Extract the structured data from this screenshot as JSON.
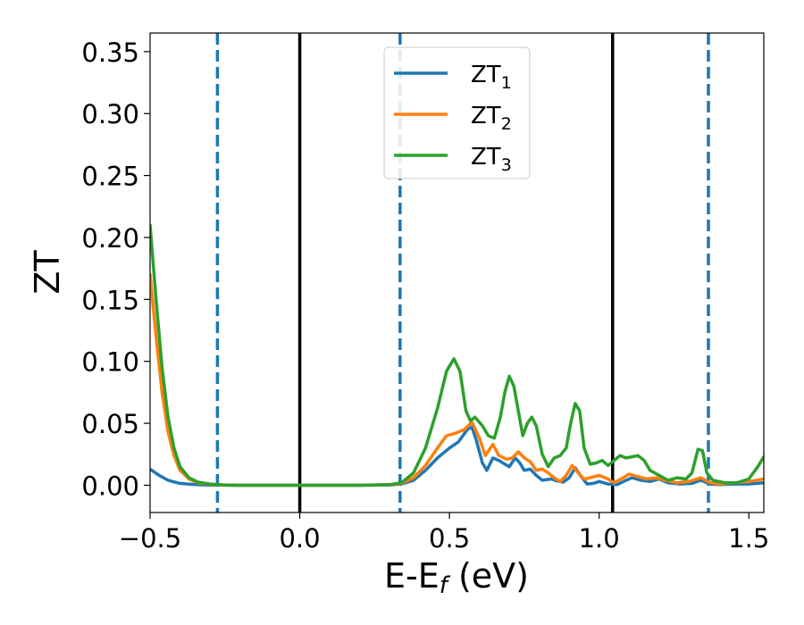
{
  "chart_data": {
    "type": "line",
    "xlabel": "E-E",
    "xlabel_sub": "f",
    "xlabel_unit": " (eV)",
    "ylabel": "ZT",
    "xlim": [
      -0.5,
      1.55
    ],
    "ylim": [
      -0.022,
      0.365
    ],
    "xticks": [
      -0.5,
      0.0,
      0.5,
      1.0,
      1.5
    ],
    "xtick_labels": [
      "−0.5",
      "0.0",
      "0.5",
      "1.0",
      "1.5"
    ],
    "yticks": [
      0.0,
      0.05,
      0.1,
      0.15,
      0.2,
      0.25,
      0.3,
      0.35
    ],
    "ytick_labels": [
      "0.00",
      "0.05",
      "0.10",
      "0.15",
      "0.20",
      "0.25",
      "0.30",
      "0.35"
    ],
    "grid": false,
    "legend_position": "top-center",
    "vlines": [
      {
        "x": -0.275,
        "style": "dashed",
        "color": "#1f77b4"
      },
      {
        "x": 0.0,
        "style": "solid",
        "color": "#000000"
      },
      {
        "x": 0.335,
        "style": "dashed",
        "color": "#1f77b4"
      },
      {
        "x": 1.045,
        "style": "solid",
        "color": "#000000"
      },
      {
        "x": 1.365,
        "style": "dashed",
        "color": "#1f77b4"
      }
    ],
    "series": [
      {
        "name": "ZT",
        "name_sub": "1",
        "color": "#1f77b4",
        "points": [
          [
            -0.5,
            0.013
          ],
          [
            -0.47,
            0.008
          ],
          [
            -0.44,
            0.004
          ],
          [
            -0.4,
            0.0015
          ],
          [
            -0.35,
            0.0005
          ],
          [
            -0.3,
            0.0002
          ],
          [
            -0.2,
            0.0
          ],
          [
            0.0,
            0.0
          ],
          [
            0.2,
            0.0
          ],
          [
            0.3,
            0.0003
          ],
          [
            0.34,
            0.001
          ],
          [
            0.38,
            0.004
          ],
          [
            0.42,
            0.012
          ],
          [
            0.46,
            0.022
          ],
          [
            0.5,
            0.03
          ],
          [
            0.53,
            0.035
          ],
          [
            0.56,
            0.045
          ],
          [
            0.575,
            0.047
          ],
          [
            0.59,
            0.036
          ],
          [
            0.61,
            0.018
          ],
          [
            0.625,
            0.012
          ],
          [
            0.645,
            0.022
          ],
          [
            0.665,
            0.02
          ],
          [
            0.685,
            0.017
          ],
          [
            0.7,
            0.015
          ],
          [
            0.72,
            0.022
          ],
          [
            0.735,
            0.018
          ],
          [
            0.75,
            0.012
          ],
          [
            0.77,
            0.013
          ],
          [
            0.79,
            0.008
          ],
          [
            0.81,
            0.004
          ],
          [
            0.84,
            0.005
          ],
          [
            0.86,
            0.0035
          ],
          [
            0.88,
            0.0025
          ],
          [
            0.9,
            0.006
          ],
          [
            0.92,
            0.014
          ],
          [
            0.94,
            0.007
          ],
          [
            0.96,
            0.001
          ],
          [
            0.98,
            0.0015
          ],
          [
            1.0,
            0.003
          ],
          [
            1.03,
            0.001
          ],
          [
            1.06,
            0.0005
          ],
          [
            1.09,
            0.004
          ],
          [
            1.11,
            0.006
          ],
          [
            1.14,
            0.004
          ],
          [
            1.17,
            0.003
          ],
          [
            1.2,
            0.005
          ],
          [
            1.23,
            0.002
          ],
          [
            1.27,
            0.001
          ],
          [
            1.31,
            0.0015
          ],
          [
            1.34,
            0.004
          ],
          [
            1.37,
            0.001
          ],
          [
            1.4,
            0.0005
          ],
          [
            1.45,
            0.001
          ],
          [
            1.5,
            0.001
          ],
          [
            1.55,
            0.002
          ]
        ]
      },
      {
        "name": "ZT",
        "name_sub": "2",
        "color": "#ff7f0e",
        "points": [
          [
            -0.5,
            0.17
          ],
          [
            -0.48,
            0.12
          ],
          [
            -0.46,
            0.075
          ],
          [
            -0.44,
            0.043
          ],
          [
            -0.42,
            0.024
          ],
          [
            -0.4,
            0.012
          ],
          [
            -0.37,
            0.005
          ],
          [
            -0.34,
            0.002
          ],
          [
            -0.3,
            0.0008
          ],
          [
            -0.25,
            0.0002
          ],
          [
            -0.2,
            0.0
          ],
          [
            0.0,
            0.0
          ],
          [
            0.2,
            0.0
          ],
          [
            0.3,
            0.0004
          ],
          [
            0.34,
            0.0015
          ],
          [
            0.38,
            0.006
          ],
          [
            0.42,
            0.016
          ],
          [
            0.46,
            0.03
          ],
          [
            0.49,
            0.04
          ],
          [
            0.52,
            0.042
          ],
          [
            0.55,
            0.045
          ],
          [
            0.575,
            0.051
          ],
          [
            0.6,
            0.038
          ],
          [
            0.62,
            0.024
          ],
          [
            0.645,
            0.033
          ],
          [
            0.665,
            0.024
          ],
          [
            0.69,
            0.021
          ],
          [
            0.71,
            0.022
          ],
          [
            0.73,
            0.027
          ],
          [
            0.75,
            0.022
          ],
          [
            0.77,
            0.019
          ],
          [
            0.79,
            0.012
          ],
          [
            0.81,
            0.013
          ],
          [
            0.83,
            0.01
          ],
          [
            0.85,
            0.006
          ],
          [
            0.87,
            0.003
          ],
          [
            0.89,
            0.008
          ],
          [
            0.91,
            0.016
          ],
          [
            0.93,
            0.01
          ],
          [
            0.95,
            0.005
          ],
          [
            0.97,
            0.006
          ],
          [
            1.0,
            0.008
          ],
          [
            1.03,
            0.005
          ],
          [
            1.05,
            0.002
          ],
          [
            1.08,
            0.006
          ],
          [
            1.1,
            0.009
          ],
          [
            1.13,
            0.007
          ],
          [
            1.16,
            0.005
          ],
          [
            1.19,
            0.006
          ],
          [
            1.22,
            0.004
          ],
          [
            1.26,
            0.002
          ],
          [
            1.3,
            0.003
          ],
          [
            1.34,
            0.006
          ],
          [
            1.37,
            0.002
          ],
          [
            1.4,
            0.001
          ],
          [
            1.45,
            0.002
          ],
          [
            1.5,
            0.003
          ],
          [
            1.55,
            0.005
          ]
        ]
      },
      {
        "name": "ZT",
        "name_sub": "3",
        "color": "#2ca02c",
        "points": [
          [
            -0.5,
            0.21
          ],
          [
            -0.48,
            0.15
          ],
          [
            -0.46,
            0.095
          ],
          [
            -0.44,
            0.055
          ],
          [
            -0.42,
            0.03
          ],
          [
            -0.4,
            0.015
          ],
          [
            -0.37,
            0.006
          ],
          [
            -0.34,
            0.0025
          ],
          [
            -0.3,
            0.001
          ],
          [
            -0.25,
            0.0002
          ],
          [
            -0.2,
            0.0
          ],
          [
            0.0,
            0.0
          ],
          [
            0.2,
            0.0
          ],
          [
            0.3,
            0.0005
          ],
          [
            0.34,
            0.002
          ],
          [
            0.38,
            0.01
          ],
          [
            0.42,
            0.03
          ],
          [
            0.46,
            0.062
          ],
          [
            0.49,
            0.092
          ],
          [
            0.515,
            0.102
          ],
          [
            0.535,
            0.092
          ],
          [
            0.555,
            0.06
          ],
          [
            0.57,
            0.052
          ],
          [
            0.585,
            0.055
          ],
          [
            0.61,
            0.048
          ],
          [
            0.63,
            0.04
          ],
          [
            0.65,
            0.038
          ],
          [
            0.67,
            0.055
          ],
          [
            0.685,
            0.075
          ],
          [
            0.7,
            0.088
          ],
          [
            0.715,
            0.08
          ],
          [
            0.73,
            0.06
          ],
          [
            0.745,
            0.04
          ],
          [
            0.76,
            0.05
          ],
          [
            0.775,
            0.055
          ],
          [
            0.79,
            0.048
          ],
          [
            0.81,
            0.025
          ],
          [
            0.83,
            0.015
          ],
          [
            0.85,
            0.022
          ],
          [
            0.87,
            0.024
          ],
          [
            0.89,
            0.03
          ],
          [
            0.905,
            0.05
          ],
          [
            0.92,
            0.066
          ],
          [
            0.935,
            0.06
          ],
          [
            0.95,
            0.03
          ],
          [
            0.97,
            0.017
          ],
          [
            0.99,
            0.018
          ],
          [
            1.01,
            0.02
          ],
          [
            1.03,
            0.016
          ],
          [
            1.05,
            0.02
          ],
          [
            1.07,
            0.024
          ],
          [
            1.09,
            0.022
          ],
          [
            1.11,
            0.023
          ],
          [
            1.13,
            0.024
          ],
          [
            1.15,
            0.02
          ],
          [
            1.17,
            0.012
          ],
          [
            1.2,
            0.008
          ],
          [
            1.23,
            0.004
          ],
          [
            1.26,
            0.006
          ],
          [
            1.29,
            0.005
          ],
          [
            1.31,
            0.01
          ],
          [
            1.33,
            0.029
          ],
          [
            1.345,
            0.028
          ],
          [
            1.36,
            0.01
          ],
          [
            1.38,
            0.004
          ],
          [
            1.42,
            0.002
          ],
          [
            1.46,
            0.002
          ],
          [
            1.5,
            0.005
          ],
          [
            1.53,
            0.015
          ],
          [
            1.55,
            0.023
          ]
        ]
      }
    ]
  }
}
